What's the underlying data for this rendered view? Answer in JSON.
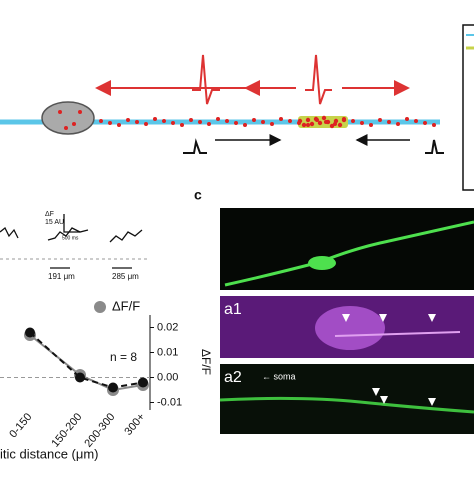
{
  "diagram": {
    "box": ""
  },
  "traces": {
    "scale_y": "ΔF",
    "scale_y_value": "15 AU",
    "scale_x": "500 ms",
    "labels": [
      "191 μm",
      "285 μm"
    ]
  },
  "panel_c": {
    "label": "c",
    "a1": "a1",
    "a2": "a2",
    "soma": "← soma"
  },
  "chart_data": {
    "type": "line",
    "x_label": "itic distance (μm)",
    "y_label": "ΔF/F",
    "annotation": "n = 8",
    "categories": [
      "0-150",
      "150-200",
      "200-300",
      "300+"
    ],
    "series": [
      {
        "name": "ΔF/F",
        "color": "#8a8a8a",
        "values": [
          0.017,
          0.001,
          -0.005,
          -0.003
        ]
      },
      {
        "name": null,
        "color": "#111111",
        "values": [
          0.018,
          0.0,
          -0.004,
          -0.002
        ]
      }
    ],
    "ylim": [
      -0.013,
      0.025
    ],
    "yticks": [
      0.02,
      0.01,
      {
        "value": 0,
        "label": "0.00"
      },
      {
        "value": -0.01,
        "label": "-0.01"
      }
    ],
    "zero_line": true,
    "legend": "top"
  }
}
